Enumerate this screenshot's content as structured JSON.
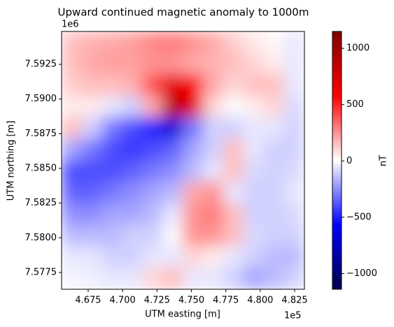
{
  "chart_data": {
    "type": "heatmap",
    "title": "Upward continued magnetic anomaly to 1000m",
    "x_label": "UTM easting [m]",
    "y_label": "UTM northing [m]",
    "x_offset_label": "1e5",
    "y_offset_label": "1e6",
    "colorbar_label": "nT",
    "colormap": "seismic",
    "xlim": [
      465570,
      483210
    ],
    "ylim": [
      7576290,
      7594870
    ],
    "clim": [
      -1140,
      1150
    ],
    "xticks": [
      {
        "value": 467500,
        "label": "4.675"
      },
      {
        "value": 470000,
        "label": "4.700"
      },
      {
        "value": 472500,
        "label": "4.725"
      },
      {
        "value": 475000,
        "label": "4.750"
      },
      {
        "value": 477500,
        "label": "4.775"
      },
      {
        "value": 480000,
        "label": "4.800"
      },
      {
        "value": 482500,
        "label": "4.825"
      }
    ],
    "yticks": [
      {
        "value": 7577500,
        "label": "7.5775"
      },
      {
        "value": 7580000,
        "label": "7.5800"
      },
      {
        "value": 7582500,
        "label": "7.5825"
      },
      {
        "value": 7585000,
        "label": "7.5850"
      },
      {
        "value": 7587500,
        "label": "7.5875"
      },
      {
        "value": 7590000,
        "label": "7.5900"
      },
      {
        "value": 7592500,
        "label": "7.5925"
      }
    ],
    "cticks": [
      {
        "value": -1000,
        "label": "−1000"
      },
      {
        "value": -500,
        "label": "−500"
      },
      0,
      500,
      1000
    ],
    "x": [
      466305,
      467775,
      469245,
      470715,
      472185,
      473655,
      475125,
      476595,
      478065,
      479535,
      481005,
      482475
    ],
    "y": [
      7594096,
      7592548,
      7591000,
      7589452,
      7587904,
      7586356,
      7584808,
      7583260,
      7581712,
      7580164,
      7578616,
      7577068
    ],
    "z": [
      [
        150,
        180,
        200,
        220,
        280,
        300,
        250,
        200,
        120,
        60,
        20,
        -50
      ],
      [
        150,
        200,
        220,
        220,
        250,
        250,
        200,
        180,
        150,
        100,
        50,
        -50
      ],
      [
        120,
        150,
        150,
        180,
        400,
        700,
        600,
        200,
        100,
        150,
        150,
        -50
      ],
      [
        50,
        50,
        -50,
        -100,
        200,
        900,
        700,
        100,
        0,
        50,
        100,
        -80
      ],
      [
        150,
        -100,
        -300,
        -400,
        -500,
        -700,
        -300,
        -100,
        -100,
        -50,
        -50,
        -100
      ],
      [
        -200,
        -300,
        -400,
        -450,
        -400,
        -350,
        -200,
        -100,
        150,
        -50,
        -100,
        -100
      ],
      [
        -400,
        -400,
        -400,
        -350,
        -300,
        -250,
        -150,
        -50,
        150,
        -80,
        -100,
        -80
      ],
      [
        -350,
        -350,
        -300,
        -250,
        -200,
        -150,
        200,
        250,
        -50,
        -100,
        -100,
        -50
      ],
      [
        -250,
        -250,
        -200,
        -200,
        -150,
        -50,
        250,
        300,
        150,
        -100,
        -100,
        -80
      ],
      [
        -150,
        -150,
        -150,
        -100,
        -100,
        0,
        250,
        250,
        150,
        -80,
        -100,
        -100
      ],
      [
        -50,
        -50,
        -100,
        -100,
        -50,
        -50,
        100,
        50,
        -50,
        -100,
        -150,
        -150
      ],
      [
        -20,
        -30,
        -50,
        -50,
        100,
        150,
        -50,
        -50,
        -100,
        -200,
        -150,
        -100
      ]
    ]
  }
}
